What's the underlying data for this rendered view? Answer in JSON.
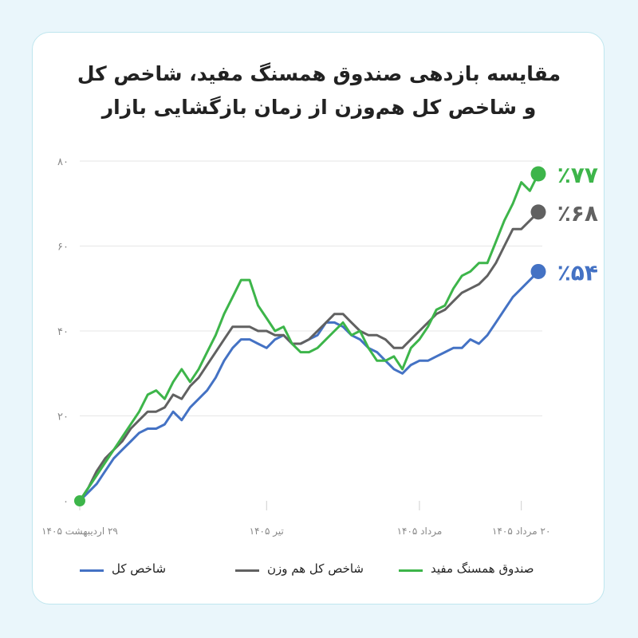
{
  "title": {
    "line1": "مقایسه بازدهی صندوق همسنگ مفید، شاخص کل",
    "line2": "و شاخص کل هم‌وزن از زمان بازگشایی بازار"
  },
  "colors": {
    "green": "#3db54a",
    "gray": "#616161",
    "blue": "#4472c4",
    "grid": "#e6e6e6",
    "tick": "#888888"
  },
  "chart_data": {
    "type": "line",
    "ylim": [
      0,
      80
    ],
    "yticks": [
      "۰",
      "۲۰",
      "۴۰",
      "۶۰",
      "۸۰"
    ],
    "xticks": [
      {
        "label": "۲۹ اردیبهشت ۱۴۰۵",
        "index": 0
      },
      {
        "label": "تیر ۱۴۰۵",
        "index": 22
      },
      {
        "label": "مرداد ۱۴۰۵",
        "index": 40
      },
      {
        "label": "۲۰ مرداد ۱۴۰۵",
        "index": 52
      }
    ],
    "grid": true,
    "legend_position": "bottom",
    "end_labels": [
      "٪۷۷",
      "٪۶۸",
      "٪۵۴"
    ],
    "series": [
      {
        "name": "صندوق همسنگ مفید",
        "color": "#3db54a",
        "end_label": "٪۷۷",
        "values": [
          0,
          3,
          6,
          9,
          12,
          15,
          18,
          21,
          25,
          26,
          24,
          28,
          31,
          28,
          31,
          35,
          39,
          44,
          48,
          52,
          52,
          46,
          43,
          40,
          41,
          37,
          35,
          35,
          36,
          38,
          40,
          42,
          39,
          40,
          36,
          33,
          33,
          34,
          31,
          36,
          38,
          41,
          45,
          46,
          50,
          53,
          54,
          56,
          56,
          61,
          66,
          70,
          75,
          73,
          77
        ]
      },
      {
        "name": "شاخص کل هم وزن",
        "color": "#616161",
        "end_label": "٪۶۸",
        "values": [
          0,
          3,
          7,
          10,
          12,
          14,
          17,
          19,
          21,
          21,
          22,
          25,
          24,
          27,
          29,
          32,
          35,
          38,
          41,
          41,
          41,
          40,
          40,
          39,
          39,
          37,
          37,
          38,
          40,
          42,
          44,
          44,
          42,
          40,
          39,
          39,
          38,
          36,
          36,
          38,
          40,
          42,
          44,
          45,
          47,
          49,
          50,
          51,
          53,
          56,
          60,
          64,
          64,
          66,
          68
        ]
      },
      {
        "name": "شاخص کل",
        "color": "#4472c4",
        "end_label": "٪۵۴",
        "values": [
          0,
          2,
          4,
          7,
          10,
          12,
          14,
          16,
          17,
          17,
          18,
          21,
          19,
          22,
          24,
          26,
          29,
          33,
          36,
          38,
          38,
          37,
          36,
          38,
          39,
          37,
          37,
          38,
          39,
          42,
          42,
          41,
          39,
          38,
          36,
          35,
          33,
          31,
          30,
          32,
          33,
          33,
          34,
          35,
          36,
          36,
          38,
          37,
          39,
          42,
          45,
          48,
          50,
          52,
          54
        ]
      }
    ]
  },
  "legend": [
    {
      "label": "شاخص کل",
      "color": "#4472c4"
    },
    {
      "label": "شاخص کل هم وزن",
      "color": "#616161"
    },
    {
      "label": "صندوق همسنگ مفید",
      "color": "#3db54a"
    }
  ]
}
